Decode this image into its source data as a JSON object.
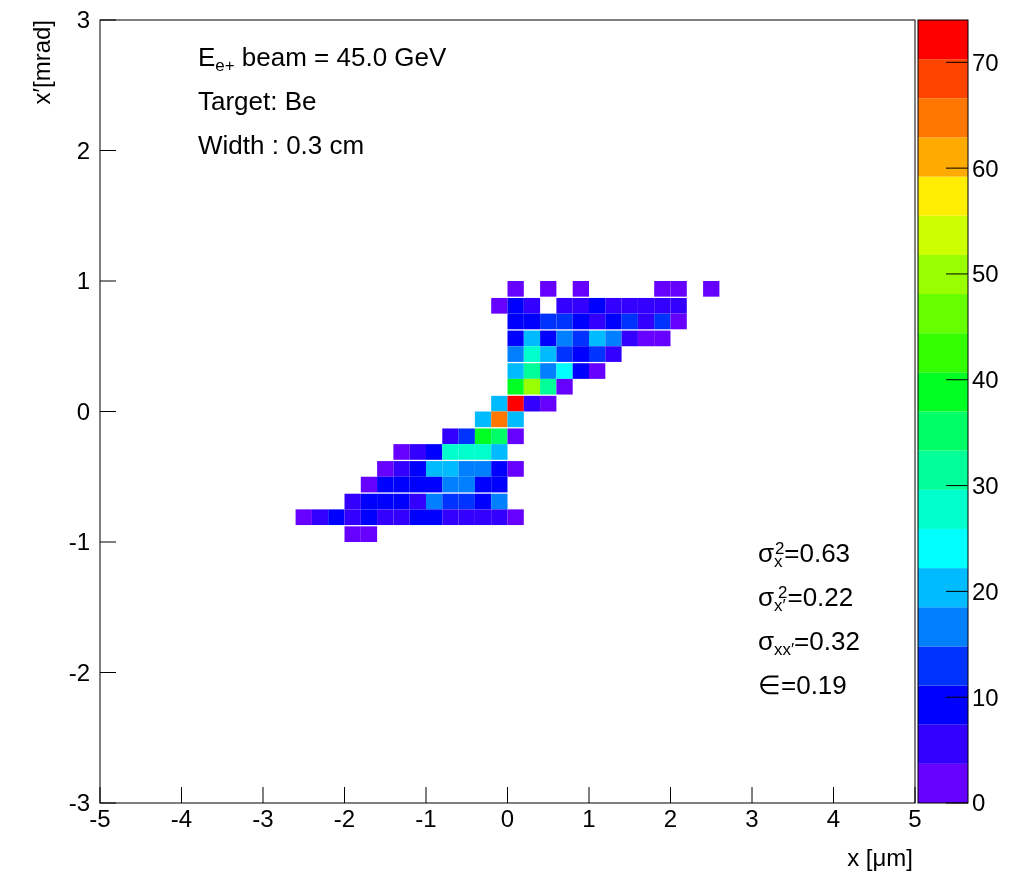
{
  "chart_data": {
    "type": "scatter",
    "xlabel": "x [μm]",
    "ylabel": "x′[mrad]",
    "marker": "square",
    "annotations": [
      "E$_{e+}$ beam = 45.0 GeV",
      "Target: Be",
      "Width : 0.3 cm",
      "σ$_{x}$$^{2}$=0.63",
      "σ$_{x′}$$^{2}$=0.22",
      "σ$_{xx′}$=0.32",
      "∈=0.19"
    ],
    "xlim": [
      -5,
      5
    ],
    "xticks": [
      -5,
      -4,
      -3,
      -2,
      -1,
      0,
      1,
      2,
      3,
      4,
      5
    ],
    "ylim": [
      -3,
      3
    ],
    "yticks": [
      -3,
      -2,
      -1,
      0,
      1,
      2,
      3
    ],
    "clim": [
      0,
      74
    ],
    "cticks": [
      0,
      10,
      20,
      30,
      40,
      50,
      60,
      70
    ],
    "x": [
      0.1,
      0.5,
      0.9,
      1.9,
      2.1,
      2.5,
      -0.1,
      0.1,
      0.3,
      0.7,
      0.9,
      1.1,
      1.3,
      1.5,
      1.7,
      1.9,
      2.1,
      0.1,
      0.3,
      0.5,
      0.7,
      0.9,
      1.1,
      1.3,
      1.5,
      1.7,
      1.9,
      2.1,
      0.1,
      0.3,
      0.5,
      0.7,
      0.9,
      1.1,
      1.3,
      1.5,
      1.7,
      1.9,
      0.1,
      0.3,
      0.5,
      0.7,
      0.9,
      1.1,
      1.3,
      0.1,
      0.3,
      0.5,
      0.7,
      0.9,
      1.1,
      0.1,
      0.3,
      0.5,
      0.7,
      -0.1,
      0.1,
      0.3,
      0.5,
      -0.3,
      -0.1,
      0.1,
      -0.7,
      -0.5,
      -0.3,
      -0.1,
      0.1,
      -1.3,
      -1.1,
      -0.9,
      -0.7,
      -0.5,
      -0.3,
      -0.1,
      -1.5,
      -1.3,
      -1.1,
      -0.9,
      -0.7,
      -0.5,
      -0.3,
      -0.1,
      0.1,
      -1.7,
      -1.5,
      -1.3,
      -1.1,
      -0.9,
      -0.7,
      -0.5,
      -0.3,
      -0.1,
      -1.9,
      -1.7,
      -1.5,
      -1.3,
      -1.1,
      -0.9,
      -0.7,
      -0.5,
      -0.3,
      -0.1,
      -2.5,
      -2.3,
      -2.1,
      -1.9,
      -1.7,
      -1.5,
      -1.3,
      -1.1,
      -0.9,
      -0.7,
      -0.5,
      -0.3,
      -0.1,
      0.1,
      -1.9,
      -1.7
    ],
    "values": [
      0.94,
      0.94,
      0.94,
      0.94,
      0.94,
      0.94,
      0.81,
      0.81,
      0.81,
      0.81,
      0.81,
      0.81,
      0.81,
      0.81,
      0.81,
      0.81,
      0.81,
      0.69,
      0.69,
      0.69,
      0.69,
      0.69,
      0.69,
      0.69,
      0.69,
      0.69,
      0.69,
      0.69,
      0.56,
      0.56,
      0.56,
      0.56,
      0.56,
      0.56,
      0.56,
      0.56,
      0.56,
      0.56,
      0.44,
      0.44,
      0.44,
      0.44,
      0.44,
      0.44,
      0.44,
      0.31,
      0.31,
      0.31,
      0.31,
      0.31,
      0.31,
      0.19,
      0.19,
      0.19,
      0.19,
      0.06,
      0.06,
      0.06,
      0.06,
      -0.06,
      -0.06,
      -0.06,
      -0.19,
      -0.19,
      -0.19,
      -0.19,
      -0.19,
      -0.31,
      -0.31,
      -0.31,
      -0.31,
      -0.31,
      -0.31,
      -0.31,
      -0.44,
      -0.44,
      -0.44,
      -0.44,
      -0.44,
      -0.44,
      -0.44,
      -0.44,
      -0.44,
      -0.56,
      -0.56,
      -0.56,
      -0.56,
      -0.56,
      -0.56,
      -0.56,
      -0.56,
      -0.56,
      -0.69,
      -0.69,
      -0.69,
      -0.69,
      -0.69,
      -0.69,
      -0.69,
      -0.69,
      -0.69,
      -0.69,
      -0.81,
      -0.81,
      -0.81,
      -0.81,
      -0.81,
      -0.81,
      -0.81,
      -0.81,
      -0.81,
      -0.81,
      -0.81,
      -0.81,
      -0.81,
      -0.81,
      -0.94,
      -0.94
    ],
    "cvalues": [
      2,
      2,
      2,
      2,
      2,
      2,
      2,
      9,
      6,
      6,
      6,
      9,
      6,
      6,
      6,
      6,
      6,
      9,
      9,
      13,
      13,
      9,
      6,
      9,
      13,
      6,
      13,
      2,
      9,
      20,
      9,
      17,
      13,
      20,
      17,
      6,
      2,
      2,
      17,
      28,
      20,
      13,
      9,
      13,
      6,
      20,
      31,
      17,
      24,
      9,
      2,
      39,
      50,
      31,
      2,
      20,
      72,
      6,
      2,
      20,
      65,
      20,
      6,
      13,
      39,
      35,
      2,
      2,
      6,
      9,
      28,
      28,
      28,
      20,
      2,
      6,
      9,
      20,
      20,
      17,
      17,
      9,
      2,
      2,
      9,
      9,
      9,
      9,
      17,
      17,
      9,
      9,
      6,
      9,
      9,
      9,
      6,
      17,
      13,
      13,
      9,
      17,
      2,
      6,
      9,
      6,
      9,
      6,
      6,
      9,
      9,
      6,
      6,
      6,
      6,
      2,
      2,
      2
    ]
  }
}
